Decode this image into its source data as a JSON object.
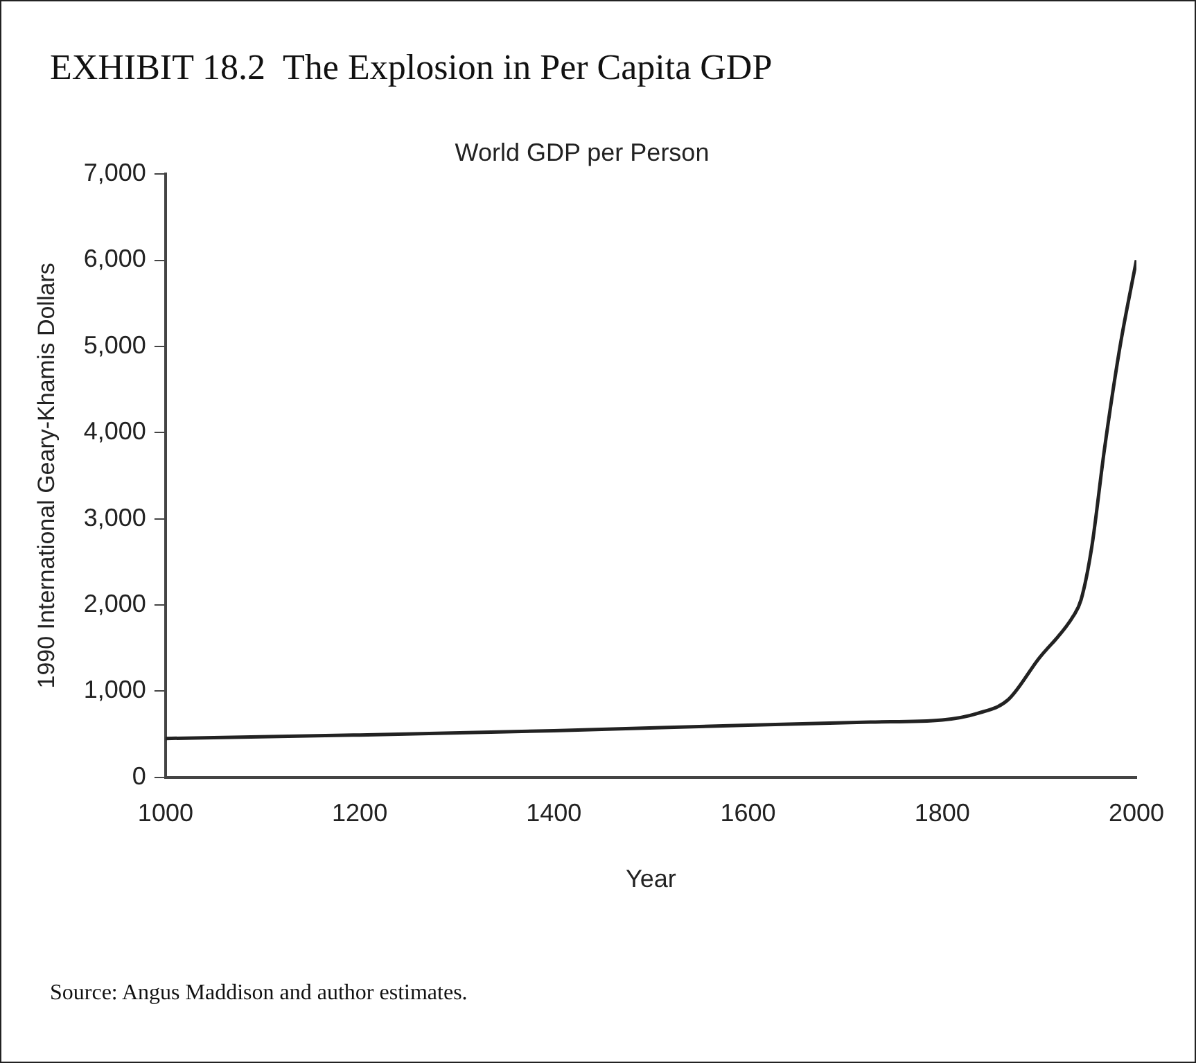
{
  "chart_data": {
    "type": "line",
    "title": "EXHIBIT 18.2  The Explosion in Per Capita GDP",
    "subtitle": "World GDP per Person",
    "xlabel": "Year",
    "ylabel": "1990 International Geary-Khamis Dollars",
    "x": [
      1000,
      1200,
      1400,
      1600,
      1726,
      1800,
      1836,
      1868,
      1899,
      1935,
      1943,
      1954,
      1967,
      1983,
      2000
    ],
    "series": [
      {
        "color": "#222222",
        "values": [
          450,
          490,
          540,
          604,
          640,
          665,
          740,
          900,
          1370,
          1870,
          2060,
          2670,
          3800,
          4990,
          6000
        ]
      }
    ],
    "xlim": [
      1000,
      2000
    ],
    "xticks": [
      1000,
      1200,
      1400,
      1600,
      1800,
      2000
    ],
    "ylim": [
      0,
      7000
    ],
    "yticks": [
      {
        "value": 0,
        "label": "0"
      },
      {
        "value": 1000,
        "label": "1,000"
      },
      {
        "value": 2000,
        "label": "2,000"
      },
      {
        "value": 3000,
        "label": "3,000"
      },
      {
        "value": 4000,
        "label": "4,000"
      },
      {
        "value": 5000,
        "label": "5,000"
      },
      {
        "value": 6000,
        "label": "6,000"
      },
      {
        "value": 7000,
        "label": "7,000"
      }
    ],
    "grid": false,
    "legend": false,
    "marker": "none",
    "line_style": "solid",
    "annotations": [
      "Source: Angus Maddison and author estimates."
    ]
  }
}
